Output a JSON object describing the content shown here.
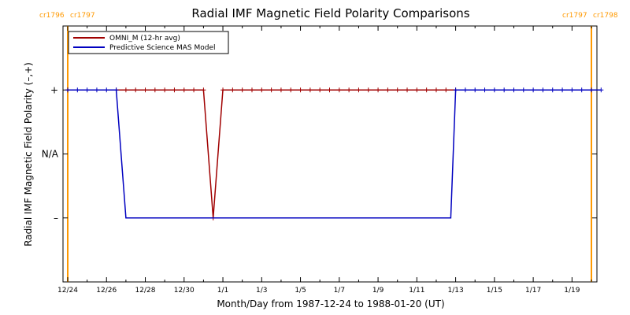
{
  "chart_data": {
    "type": "line",
    "title": "Radial IMF Magnetic Field Polarity Comparisons",
    "xlabel": "Month/Day from 1987-12-24 to 1988-01-20 (UT)",
    "ylabel": "Radial IMF Magnetic Field Polarity (–,+)",
    "x_start": "1987-12-24",
    "x_end": "1988-01-20",
    "x_ticks": [
      "1987-12-24",
      "1987-12-26",
      "1987-12-28",
      "1987-12-30",
      "1988-01-01",
      "1988-01-03",
      "1988-01-05",
      "1988-01-07",
      "1988-01-09",
      "1988-01-11",
      "1988-01-13",
      "1988-01-15",
      "1988-01-17",
      "1988-01-19"
    ],
    "x_tick_labels": [
      "12/24",
      "12/26",
      "12/28",
      "12/30",
      "1/1",
      "1/3",
      "1/5",
      "1/7",
      "1/9",
      "1/11",
      "1/13",
      "1/15",
      "1/17",
      "1/19"
    ],
    "y_categories": [
      {
        "label": "+",
        "value": 1
      },
      {
        "label": "N/A",
        "value": 0
      },
      {
        "label": "–",
        "value": -1
      }
    ],
    "ylim": [
      -2,
      2
    ],
    "legend": {
      "position": "top-left"
    },
    "series": [
      {
        "name": "OMNI_M (12-hr avg)",
        "color": "#a00000",
        "marker": "plus",
        "points": [
          [
            "1987-12-24T00:00",
            1
          ],
          [
            "1987-12-26T12:00",
            1
          ],
          [
            "1987-12-27T00:00",
            1
          ],
          [
            "1987-12-27T12:00",
            1
          ],
          [
            "1987-12-28T00:00",
            1
          ],
          [
            "1987-12-28T12:00",
            1
          ],
          [
            "1987-12-29T00:00",
            1
          ],
          [
            "1987-12-29T12:00",
            1
          ],
          [
            "1987-12-30T00:00",
            1
          ],
          [
            "1987-12-30T12:00",
            1
          ],
          [
            "1987-12-31T00:00",
            1
          ],
          [
            "1987-12-31T12:00",
            -1
          ],
          [
            "1988-01-01T00:00",
            1
          ],
          [
            "1988-01-01T12:00",
            1
          ],
          [
            "1988-01-02T00:00",
            1
          ],
          [
            "1988-01-02T12:00",
            1
          ],
          [
            "1988-01-03T00:00",
            1
          ],
          [
            "1988-01-03T12:00",
            1
          ],
          [
            "1988-01-04T00:00",
            1
          ],
          [
            "1988-01-04T12:00",
            1
          ],
          [
            "1988-01-05T00:00",
            1
          ],
          [
            "1988-01-05T12:00",
            1
          ],
          [
            "1988-01-06T00:00",
            1
          ],
          [
            "1988-01-06T12:00",
            1
          ],
          [
            "1988-01-07T00:00",
            1
          ],
          [
            "1988-01-07T12:00",
            1
          ],
          [
            "1988-01-08T00:00",
            1
          ],
          [
            "1988-01-08T12:00",
            1
          ],
          [
            "1988-01-09T00:00",
            1
          ],
          [
            "1988-01-09T12:00",
            1
          ],
          [
            "1988-01-10T00:00",
            1
          ],
          [
            "1988-01-10T12:00",
            1
          ],
          [
            "1988-01-11T00:00",
            1
          ],
          [
            "1988-01-11T12:00",
            1
          ],
          [
            "1988-01-12T00:00",
            1
          ],
          [
            "1988-01-12T12:00",
            1
          ],
          [
            "1988-01-13T00:00",
            1
          ]
        ]
      },
      {
        "name": "Predictive Science MAS Model",
        "color": "#0000c0",
        "marker": "plus",
        "points": [
          [
            "1987-12-24T00:00",
            1
          ],
          [
            "1987-12-24T12:00",
            1
          ],
          [
            "1987-12-25T00:00",
            1
          ],
          [
            "1987-12-25T12:00",
            1
          ],
          [
            "1987-12-26T00:00",
            1
          ],
          [
            "1987-12-26T12:00",
            1
          ],
          [
            "1987-12-27T00:00",
            -1
          ],
          [
            "1988-01-12T18:00",
            -1
          ],
          [
            "1988-01-13T00:00",
            1
          ],
          [
            "1988-01-13T12:00",
            1
          ],
          [
            "1988-01-14T00:00",
            1
          ],
          [
            "1988-01-14T12:00",
            1
          ],
          [
            "1988-01-15T00:00",
            1
          ],
          [
            "1988-01-15T12:00",
            1
          ],
          [
            "1988-01-16T00:00",
            1
          ],
          [
            "1988-01-16T12:00",
            1
          ],
          [
            "1988-01-17T00:00",
            1
          ],
          [
            "1988-01-17T12:00",
            1
          ],
          [
            "1988-01-18T00:00",
            1
          ],
          [
            "1988-01-18T12:00",
            1
          ],
          [
            "1988-01-19T00:00",
            1
          ],
          [
            "1988-01-19T12:00",
            1
          ],
          [
            "1988-01-20T00:00",
            1
          ],
          [
            "1988-01-20T12:00",
            1
          ]
        ],
        "markers_on": "plus-segments-only"
      }
    ],
    "carrington_markers": [
      {
        "date": "1987-12-24",
        "labels": [
          "cr1796",
          "cr1797"
        ]
      },
      {
        "date": "1988-01-20",
        "labels": [
          "cr1797",
          "cr1798"
        ]
      }
    ],
    "marker_color": "#ff9900"
  }
}
